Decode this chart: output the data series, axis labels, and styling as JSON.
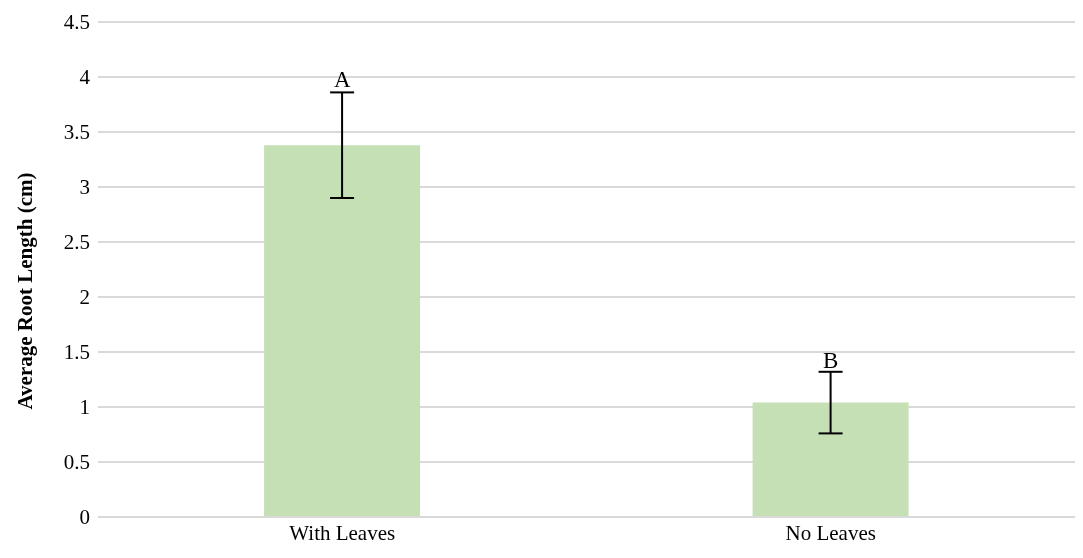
{
  "chart_data": {
    "type": "bar",
    "ylabel": "Average Root Length (cm)",
    "categories": [
      "With Leaves",
      "No Leaves"
    ],
    "values": [
      3.38,
      1.04
    ],
    "color": "#c5e0b4",
    "errors": [
      0.48,
      0.28
    ],
    "ylim": [
      0,
      4.5
    ],
    "yticks": [
      0,
      0.5,
      1,
      1.5,
      2,
      2.5,
      3,
      3.5,
      4,
      4.5
    ],
    "grid": "y",
    "legend": false,
    "annotations": [
      {
        "text": "A",
        "x": "With Leaves",
        "y": 3.87
      },
      {
        "text": "B",
        "x": "No Leaves",
        "y": 1.32
      }
    ]
  }
}
